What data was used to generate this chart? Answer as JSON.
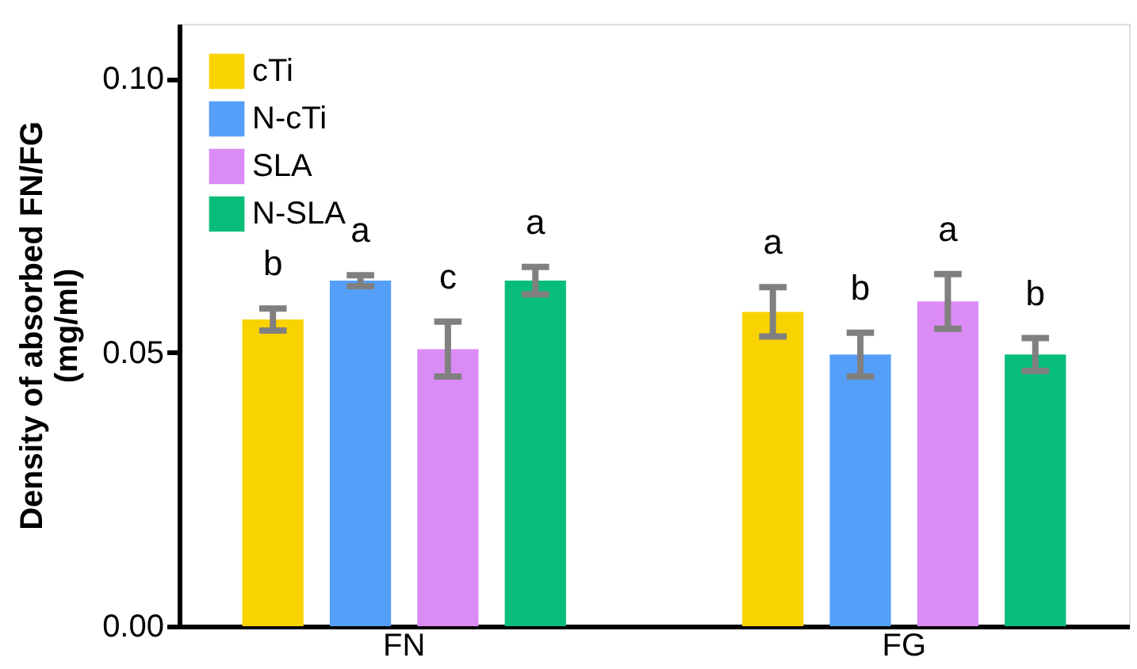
{
  "chart_data": {
    "type": "bar",
    "ylabel": "Density of absorbed FN/FG\n(mg/ml)",
    "categories": [
      "FN",
      "FG"
    ],
    "series": [
      {
        "name": "cTi",
        "color": "#f9d300",
        "values": [
          0.056,
          0.0574
        ],
        "errors": [
          0.002,
          0.0045
        ],
        "value_labels": [
          "b",
          "a"
        ]
      },
      {
        "name": "N-cTi",
        "color": "#559ff9",
        "values": [
          0.0631,
          0.0496
        ],
        "errors": [
          0.001,
          0.004
        ],
        "value_labels": [
          "a",
          "b"
        ]
      },
      {
        "name": "SLA",
        "color": "#db8bf5",
        "values": [
          0.0506,
          0.0593
        ],
        "errors": [
          0.005,
          0.005
        ],
        "value_labels": [
          "c",
          "a"
        ]
      },
      {
        "name": "N-SLA",
        "color": "#08bd7a",
        "values": [
          0.0631,
          0.0496
        ],
        "errors": [
          0.0025,
          0.003
        ],
        "value_labels": [
          "a",
          "b"
        ]
      }
    ],
    "ylim": [
      0,
      0.11
    ],
    "yticks": [
      {
        "value": 0,
        "label": "0.00"
      },
      {
        "value": 0.05,
        "label": "0.05"
      },
      {
        "value": 0.1,
        "label": "0.10"
      }
    ],
    "legend": "top left",
    "grid": false
  }
}
